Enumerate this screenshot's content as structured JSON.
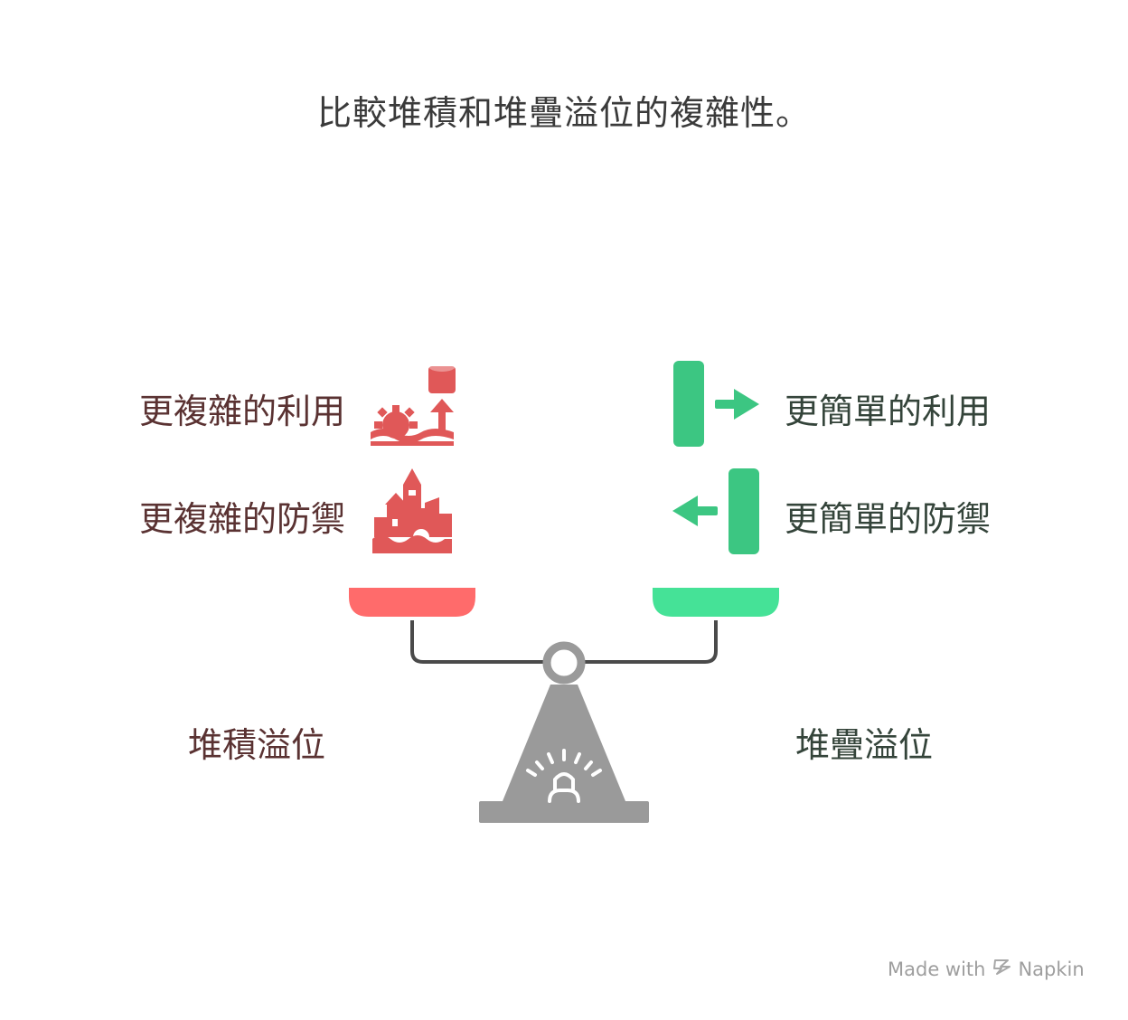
{
  "title": "比較堆積和堆疊溢位的複雜性。",
  "left_side": {
    "name": "堆積溢位",
    "items": [
      {
        "label": "更複雜的利用",
        "icon": "gear-rising-arrow-icon"
      },
      {
        "label": "更複雜的防禦",
        "icon": "castle-icon"
      }
    ],
    "pan_color": "#ff6b6b",
    "icon_color": "#e05858"
  },
  "right_side": {
    "name": "堆疊溢位",
    "items": [
      {
        "label": "更簡單的利用",
        "icon": "arrow-right-from-bar-icon"
      },
      {
        "label": "更簡單的防禦",
        "icon": "arrow-left-to-bar-icon"
      }
    ],
    "pan_color": "#45e297",
    "icon_color": "#3cc682"
  },
  "scale": {
    "base_color": "#9a9a9a",
    "beam_color": "#4a4a4a",
    "icon": "balance-scale-icon"
  },
  "watermark": {
    "prefix": "Made with",
    "brand": "Napkin",
    "icon": "napkin-logo-icon"
  }
}
